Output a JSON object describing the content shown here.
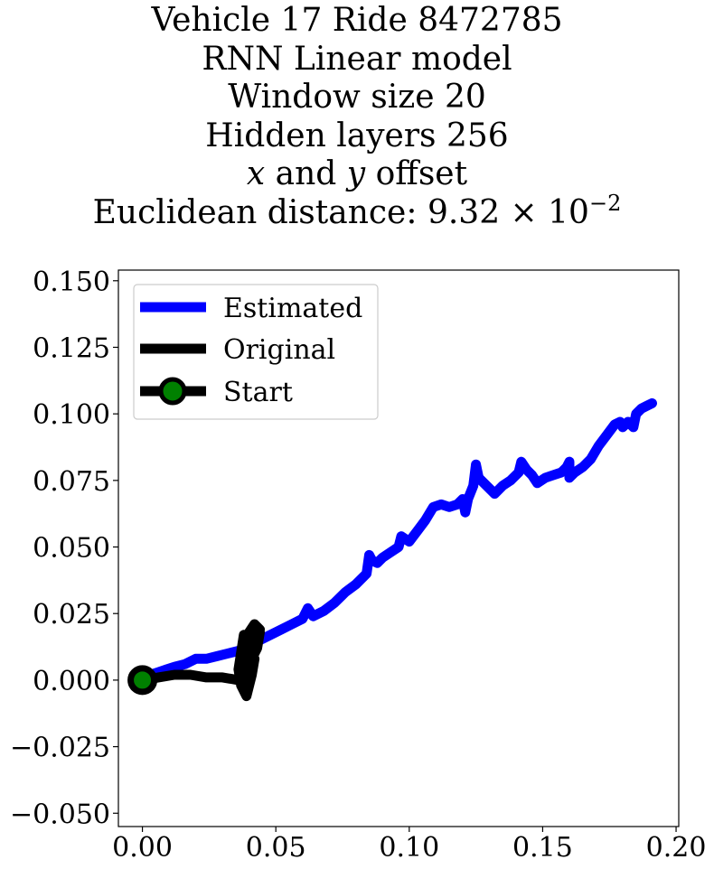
{
  "chart_data": {
    "type": "line",
    "title_lines": {
      "line1": "Vehicle 17 Ride 8472785",
      "line2": "RNN Linear model",
      "line3": "Window size 20",
      "line4": "Hidden layers 256",
      "line5_var_x": "x",
      "line5_and": " and ",
      "line5_var_y": "y",
      "line5_rest": " offset",
      "line6_prefix": "Euclidean distance: ",
      "line6_mantissa": "9.32",
      "line6_times": " × ",
      "line6_base": "10",
      "line6_exponent": "−2"
    },
    "xlim": [
      -0.009,
      0.201
    ],
    "ylim": [
      -0.055,
      0.154
    ],
    "xticks": [
      "0.00",
      "0.05",
      "0.10",
      "0.15",
      "0.20"
    ],
    "yticks": [
      "−0.050",
      "−0.025",
      "0.000",
      "0.025",
      "0.050",
      "0.075",
      "0.100",
      "0.125",
      "0.150"
    ],
    "legend_placement": "upper-left",
    "legend": {
      "estimated": "Estimated",
      "original": "Original",
      "start": "Start"
    },
    "colors": {
      "estimated": "#0000ff",
      "original": "#000000",
      "start_marker": "#000000",
      "start_fill": "#008000"
    },
    "series": [
      {
        "name": "Estimated",
        "x": [
          0.0,
          0.003,
          0.006,
          0.009,
          0.012,
          0.016,
          0.02,
          0.024,
          0.028,
          0.032,
          0.036,
          0.04,
          0.044,
          0.048,
          0.052,
          0.056,
          0.06,
          0.062,
          0.064,
          0.068,
          0.072,
          0.076,
          0.08,
          0.084,
          0.085,
          0.086,
          0.088,
          0.09,
          0.093,
          0.096,
          0.097,
          0.1,
          0.103,
          0.106,
          0.109,
          0.112,
          0.115,
          0.118,
          0.12,
          0.121,
          0.122,
          0.124,
          0.125,
          0.126,
          0.128,
          0.13,
          0.132,
          0.135,
          0.138,
          0.141,
          0.142,
          0.144,
          0.146,
          0.148,
          0.151,
          0.154,
          0.157,
          0.159,
          0.16,
          0.16,
          0.162,
          0.165,
          0.168,
          0.171,
          0.174,
          0.177,
          0.179,
          0.18,
          0.182,
          0.184,
          0.185,
          0.187,
          0.189,
          0.191
        ],
        "y": [
          0.0,
          0.002,
          0.003,
          0.004,
          0.005,
          0.006,
          0.008,
          0.008,
          0.009,
          0.01,
          0.011,
          0.013,
          0.015,
          0.017,
          0.019,
          0.021,
          0.023,
          0.027,
          0.024,
          0.026,
          0.029,
          0.033,
          0.036,
          0.04,
          0.047,
          0.045,
          0.044,
          0.046,
          0.048,
          0.05,
          0.054,
          0.052,
          0.056,
          0.06,
          0.065,
          0.066,
          0.065,
          0.066,
          0.068,
          0.063,
          0.068,
          0.073,
          0.081,
          0.076,
          0.074,
          0.072,
          0.07,
          0.073,
          0.075,
          0.078,
          0.082,
          0.079,
          0.077,
          0.074,
          0.076,
          0.077,
          0.078,
          0.08,
          0.082,
          0.076,
          0.078,
          0.08,
          0.083,
          0.088,
          0.092,
          0.096,
          0.097,
          0.095,
          0.097,
          0.095,
          0.1,
          0.102,
          0.103,
          0.104
        ]
      },
      {
        "name": "Original",
        "x": [
          0.0,
          0.006,
          0.012,
          0.018,
          0.024,
          0.03,
          0.036,
          0.04,
          0.038,
          0.04,
          0.042,
          0.044,
          0.042,
          0.04,
          0.038,
          0.039,
          0.041,
          0.043,
          0.044,
          0.042,
          0.04,
          0.038,
          0.037,
          0.039,
          0.041,
          0.04,
          0.038,
          0.036,
          0.037,
          0.039,
          0.041,
          0.042,
          0.04,
          0.038
        ],
        "y": [
          0.0,
          0.001,
          0.002,
          0.002,
          0.001,
          0.001,
          0.0,
          0.001,
          0.004,
          0.008,
          0.013,
          0.019,
          0.021,
          0.018,
          0.014,
          0.01,
          0.008,
          0.012,
          0.018,
          0.02,
          0.016,
          0.011,
          0.006,
          0.002,
          0.006,
          0.012,
          0.017,
          0.004,
          -0.002,
          -0.006,
          0.002,
          0.008,
          0.012,
          0.003
        ]
      },
      {
        "name": "Start",
        "x": [
          0.0
        ],
        "y": [
          0.0
        ]
      }
    ]
  }
}
